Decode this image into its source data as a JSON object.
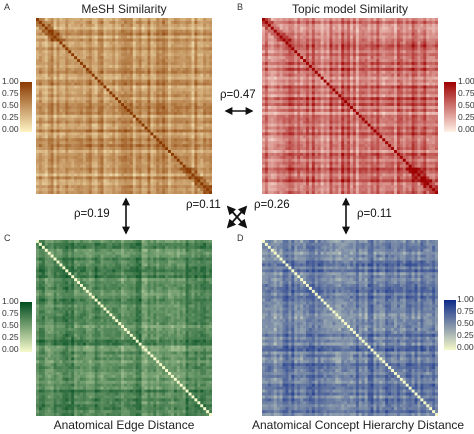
{
  "chart_data": [
    {
      "type": "heatmap",
      "panel": "A",
      "title": "MeSH Similarity",
      "colorbar": {
        "ticks": [
          "1.00",
          "0.75",
          "0.50",
          "0.25",
          "0.00"
        ],
        "range": [
          0,
          1
        ],
        "low_color": "#fff3c4",
        "high_color": "#8a3a00"
      },
      "diagonal": 1.0
    },
    {
      "type": "heatmap",
      "panel": "B",
      "title": "Topic model Similarity",
      "colorbar": {
        "ticks": [
          "1.00",
          "0.75",
          "0.50",
          "0.25",
          "0.00"
        ],
        "range": [
          0,
          1
        ],
        "low_color": "#fff1e6",
        "high_color": "#9e0000"
      },
      "diagonal": 1.0
    },
    {
      "type": "heatmap",
      "panel": "C",
      "title": "Anatomical Edge Distance",
      "colorbar": {
        "ticks": [
          "1.00",
          "0.75",
          "0.50",
          "0.25",
          "0.00"
        ],
        "range": [
          0,
          1
        ],
        "low_color": "#f7fbcc",
        "high_color": "#004d1f"
      },
      "diagonal": 0.0
    },
    {
      "type": "heatmap",
      "panel": "D",
      "title": "Anatomical Concept Hierarchy Distance",
      "colorbar": {
        "ticks": [
          "1.000",
          "0.750",
          "0.500",
          "0.250",
          "0.000"
        ],
        "range": [
          0,
          1
        ],
        "low_color": "#f5f9c8",
        "high_color": "#0d2a8a"
      },
      "diagonal": 0.0
    }
  ],
  "correlations": {
    "a_b": "ρ=0.47",
    "a_c": "ρ=0.19",
    "b_d": "ρ=0.11",
    "a_d": "ρ=0.11",
    "b_c": "ρ=0.26"
  },
  "colors": {
    "arrow": "#111111"
  }
}
